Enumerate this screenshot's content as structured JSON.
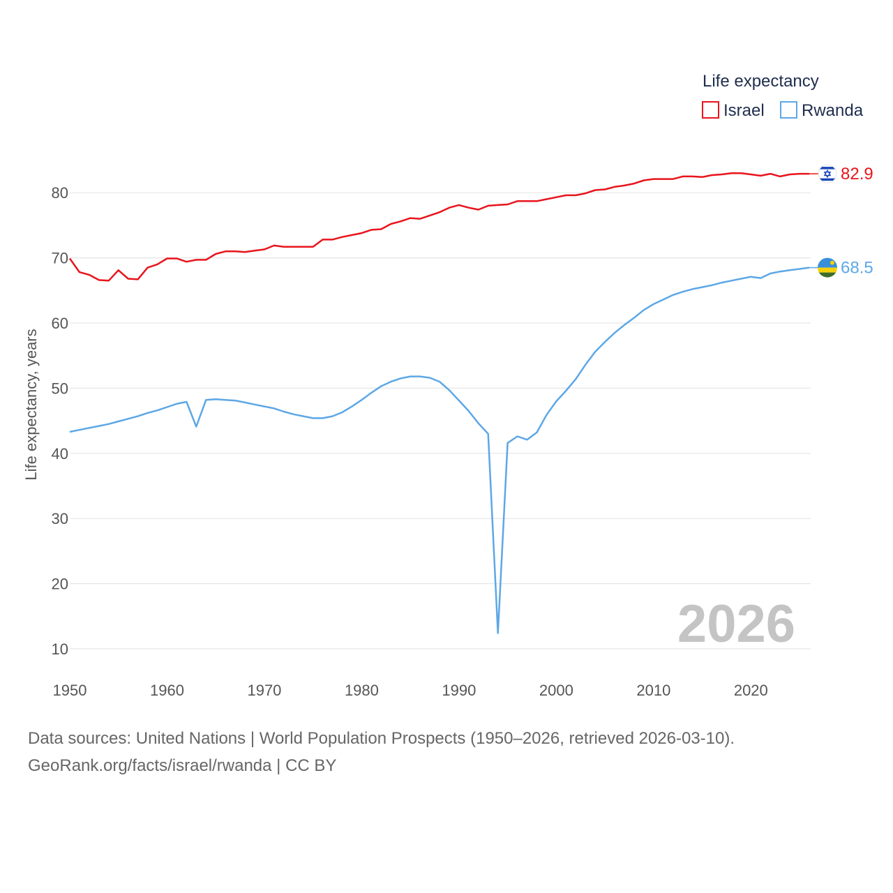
{
  "chart_data": {
    "type": "line",
    "xlabel": "",
    "ylabel": "Life expectancy, years",
    "xlim": [
      1950,
      2026
    ],
    "ylim": [
      10,
      88
    ],
    "x_ticks": [
      1950,
      1960,
      1970,
      1980,
      1990,
      2000,
      2010,
      2020
    ],
    "y_ticks": [
      10,
      20,
      30,
      40,
      50,
      60,
      70,
      80
    ],
    "grid": true,
    "legend": {
      "title": "Life expectancy",
      "placement": "top-right"
    },
    "year_overlay": "2026",
    "x": [
      1950,
      1951,
      1952,
      1953,
      1954,
      1955,
      1956,
      1957,
      1958,
      1959,
      1960,
      1961,
      1962,
      1963,
      1964,
      1965,
      1966,
      1967,
      1968,
      1969,
      1970,
      1971,
      1972,
      1973,
      1974,
      1975,
      1976,
      1977,
      1978,
      1979,
      1980,
      1981,
      1982,
      1983,
      1984,
      1985,
      1986,
      1987,
      1988,
      1989,
      1990,
      1991,
      1992,
      1993,
      1994,
      1995,
      1996,
      1997,
      1998,
      1999,
      2000,
      2001,
      2002,
      2003,
      2004,
      2005,
      2006,
      2007,
      2008,
      2009,
      2010,
      2011,
      2012,
      2013,
      2014,
      2015,
      2016,
      2017,
      2018,
      2019,
      2020,
      2021,
      2022,
      2023,
      2024,
      2025,
      2026
    ],
    "series": [
      {
        "name": "Israel",
        "color": "#e8141c",
        "end_label": "82.9",
        "flag": "israel-flag",
        "values": [
          69.9,
          67.8,
          67.4,
          66.6,
          66.5,
          68.1,
          66.8,
          66.7,
          68.5,
          69.0,
          69.9,
          69.9,
          69.4,
          69.7,
          69.7,
          70.6,
          71.0,
          71.0,
          70.9,
          71.1,
          71.3,
          71.9,
          71.7,
          71.7,
          71.7,
          71.7,
          72.8,
          72.8,
          73.2,
          73.5,
          73.8,
          74.3,
          74.4,
          75.2,
          75.6,
          76.1,
          76.0,
          76.5,
          77.0,
          77.7,
          78.1,
          77.7,
          77.4,
          78.0,
          78.1,
          78.2,
          78.7,
          78.7,
          78.7,
          79.0,
          79.3,
          79.6,
          79.6,
          79.9,
          80.4,
          80.5,
          80.9,
          81.1,
          81.4,
          81.9,
          82.1,
          82.1,
          82.1,
          82.5,
          82.5,
          82.4,
          82.7,
          82.8,
          83.0,
          83.0,
          82.8,
          82.6,
          82.9,
          82.5,
          82.8,
          82.9,
          82.9
        ]
      },
      {
        "name": "Rwanda",
        "color": "#5da7e6",
        "end_label": "68.5",
        "flag": "rwanda-flag",
        "values": [
          43.3,
          43.6,
          43.9,
          44.2,
          44.5,
          44.9,
          45.3,
          45.7,
          46.2,
          46.6,
          47.1,
          47.6,
          47.9,
          44.1,
          48.2,
          48.3,
          48.2,
          48.1,
          47.8,
          47.5,
          47.2,
          46.9,
          46.4,
          46.0,
          45.7,
          45.4,
          45.4,
          45.7,
          46.3,
          47.2,
          48.2,
          49.3,
          50.3,
          51.0,
          51.5,
          51.8,
          51.8,
          51.6,
          51.0,
          49.7,
          48.1,
          46.5,
          44.6,
          43.0,
          12.4,
          41.6,
          42.6,
          42.1,
          43.2,
          45.9,
          48.0,
          49.6,
          51.4,
          53.6,
          55.6,
          57.1,
          58.5,
          59.7,
          60.8,
          62.0,
          62.9,
          63.6,
          64.3,
          64.8,
          65.2,
          65.5,
          65.8,
          66.2,
          66.5,
          66.8,
          67.1,
          66.9,
          67.6,
          67.9,
          68.1,
          68.3,
          68.5
        ]
      }
    ]
  },
  "footer": {
    "line1": "Data sources: United Nations | World Population Prospects (1950–2026, retrieved 2026-03-10).",
    "line2": "GeoRank.org/facts/israel/rwanda | CC BY"
  }
}
